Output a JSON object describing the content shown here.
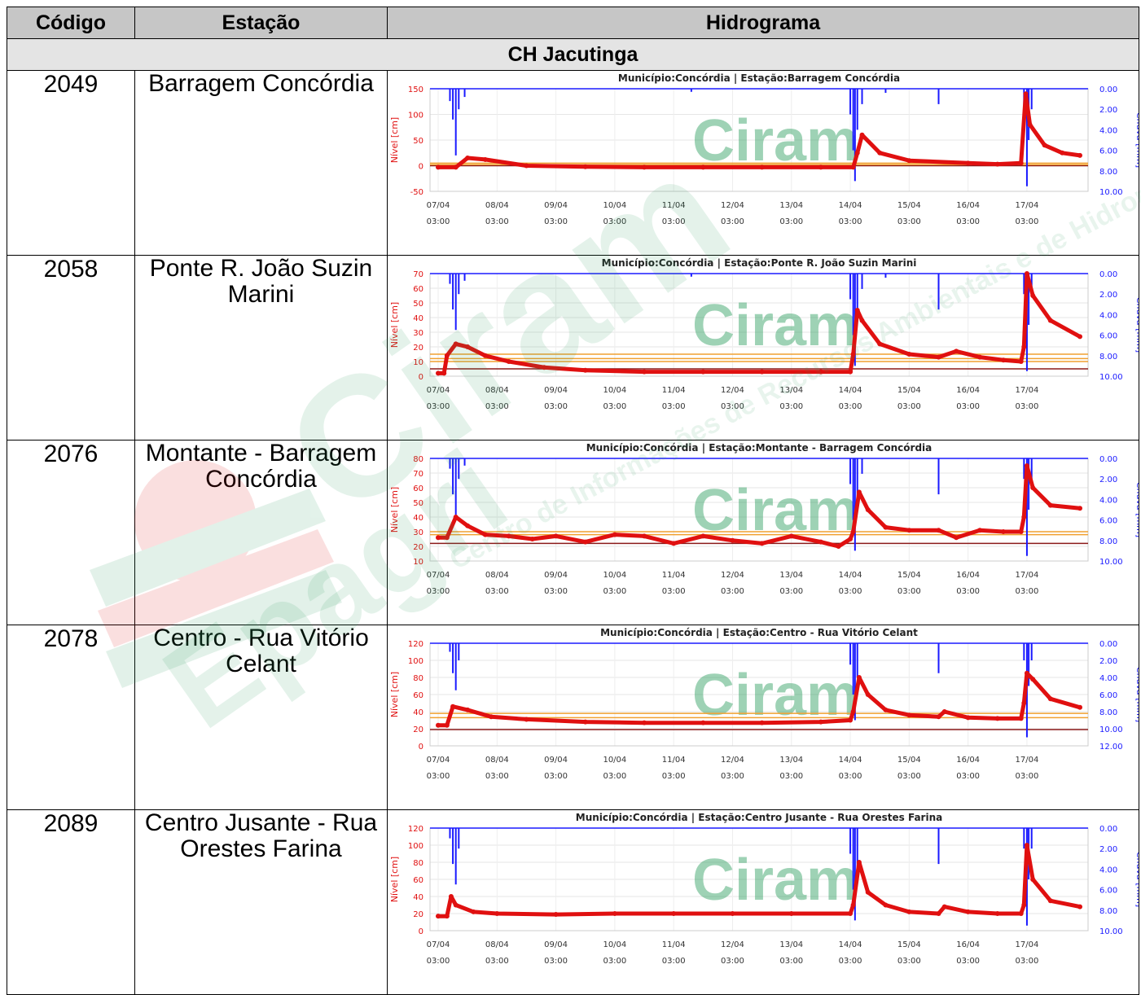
{
  "table": {
    "headers": {
      "code": "Código",
      "station": "Estação",
      "chart": "Hidrograma"
    },
    "group": "CH Jacutinga"
  },
  "watermark": {
    "brand": "Ciram",
    "org": "Epagri",
    "org_line": "Centro de Informações de Recursos Ambientais e de Hidrometeorologia de Santa Catarina"
  },
  "colors": {
    "level": "#e01010",
    "rain": "#1a1aff",
    "threshold_orange": "#f0a030",
    "threshold_dark": "#8b1a1a",
    "watermark_green": "#2a9d5c"
  },
  "x_ticks": [
    {
      "d": "07/04",
      "t": "03:00"
    },
    {
      "d": "08/04",
      "t": "03:00"
    },
    {
      "d": "09/04",
      "t": "03:00"
    },
    {
      "d": "10/04",
      "t": "03:00"
    },
    {
      "d": "11/04",
      "t": "03:00"
    },
    {
      "d": "12/04",
      "t": "03:00"
    },
    {
      "d": "13/04",
      "t": "03:00"
    },
    {
      "d": "14/04",
      "t": "03:00"
    },
    {
      "d": "15/04",
      "t": "03:00"
    },
    {
      "d": "16/04",
      "t": "03:00"
    },
    {
      "d": "17/04",
      "t": "03:00"
    }
  ],
  "rows": [
    {
      "code": "2049",
      "station": "Barragem Concórdia"
    },
    {
      "code": "2058",
      "station": "Ponte R. João Suzin Marini"
    },
    {
      "code": "2076",
      "station": "Montante - Barragem Concórdia"
    },
    {
      "code": "2078",
      "station": "Centro - Rua Vitório Celant"
    },
    {
      "code": "2089",
      "station": "Centro Jusante - Rua Orestes Farina"
    }
  ],
  "chart_data": [
    {
      "type": "line",
      "title": "Município:Concórdia | Estação:Barragem Concórdia",
      "ylabel": "Nível [cm]",
      "y2label": "Chuva [mm]",
      "ylim": [
        -50,
        150
      ],
      "yticks": [
        150,
        100,
        50,
        0,
        -50
      ],
      "y2lim": [
        0,
        10
      ],
      "y2ticks": [
        "0.00",
        "2.00",
        "4.00",
        "6.00",
        "8.00",
        "10.00"
      ],
      "thresholds": [
        {
          "value": 0,
          "color": "#8b1a1a"
        },
        {
          "value": 2,
          "color": "#f0a030"
        },
        {
          "value": 5,
          "color": "#f0a030"
        }
      ],
      "series": [
        {
          "name": "Nível",
          "x": [
            0,
            0.3,
            0.5,
            0.8,
            1.5,
            2.5,
            3.5,
            4.5,
            5.5,
            6.5,
            7.05,
            7.12,
            7.2,
            7.5,
            8,
            9,
            9.5,
            9.9,
            9.98,
            10.05,
            10.3,
            10.6,
            10.9
          ],
          "values": [
            -3,
            -3,
            15,
            12,
            0,
            -2,
            -3,
            -3,
            -3,
            -3,
            -3,
            25,
            60,
            25,
            10,
            5,
            3,
            5,
            140,
            80,
            40,
            25,
            20
          ]
        },
        {
          "name": "Chuva",
          "bars": [
            [
              0.2,
              1.2
            ],
            [
              0.25,
              3.0
            ],
            [
              0.3,
              6.5
            ],
            [
              0.35,
              2.0
            ],
            [
              0.45,
              0.8
            ],
            [
              4.3,
              0.3
            ],
            [
              7.0,
              2.5
            ],
            [
              7.05,
              6.0
            ],
            [
              7.08,
              9.0
            ],
            [
              7.12,
              4.0
            ],
            [
              7.2,
              1.5
            ],
            [
              7.6,
              0.4
            ],
            [
              8.5,
              1.5
            ],
            [
              9.95,
              2.0
            ],
            [
              10.0,
              9.5
            ],
            [
              10.03,
              5.0
            ],
            [
              10.08,
              2.0
            ]
          ]
        }
      ]
    },
    {
      "type": "line",
      "title": "Município:Concórdia | Estação:Ponte R. João Suzin Marini",
      "ylabel": "Nível [cm]",
      "y2label": "Chuva [mm]",
      "ylim": [
        0,
        70
      ],
      "yticks": [
        70,
        60,
        50,
        40,
        30,
        20,
        10,
        0
      ],
      "y2lim": [
        0,
        10
      ],
      "y2ticks": [
        "0.00",
        "2.00",
        "4.00",
        "6.00",
        "8.00",
        "10.00"
      ],
      "thresholds": [
        {
          "value": 5,
          "color": "#8b1a1a"
        },
        {
          "value": 10,
          "color": "#f0a030"
        },
        {
          "value": 12,
          "color": "#f0a030"
        },
        {
          "value": 15,
          "color": "#f0a030"
        }
      ],
      "series": [
        {
          "name": "Nível",
          "x": [
            0,
            0.1,
            0.15,
            0.3,
            0.5,
            0.8,
            1.2,
            1.8,
            2.5,
            3.5,
            4.5,
            5.5,
            6.5,
            7.0,
            7.05,
            7.12,
            7.2,
            7.5,
            8,
            8.5,
            8.8,
            9.2,
            9.6,
            9.9,
            9.95,
            10.0,
            10.1,
            10.4,
            10.9
          ],
          "values": [
            2,
            2,
            14,
            22,
            20,
            14,
            10,
            6,
            4,
            3,
            3,
            3,
            3,
            3,
            15,
            45,
            38,
            22,
            15,
            13,
            17,
            13,
            11,
            10,
            20,
            70,
            55,
            38,
            27
          ]
        },
        {
          "name": "Chuva",
          "bars": [
            [
              0.2,
              1.0
            ],
            [
              0.25,
              3.5
            ],
            [
              0.3,
              5.5
            ],
            [
              0.35,
              2.0
            ],
            [
              0.45,
              0.7
            ],
            [
              4.3,
              0.3
            ],
            [
              7.0,
              2.5
            ],
            [
              7.05,
              6.0
            ],
            [
              7.08,
              9.0
            ],
            [
              7.12,
              4.0
            ],
            [
              7.2,
              1.5
            ],
            [
              7.6,
              0.4
            ],
            [
              8.5,
              3.5
            ],
            [
              9.95,
              2.0
            ],
            [
              10.0,
              9.5
            ],
            [
              10.03,
              5.0
            ],
            [
              10.08,
              2.0
            ]
          ]
        }
      ]
    },
    {
      "type": "line",
      "title": "Município:Concórdia | Estação:Montante - Barragem Concórdia",
      "ylabel": "Nível [cm]",
      "y2label": "Chuva [mm]",
      "ylim": [
        10,
        80
      ],
      "yticks": [
        80,
        70,
        60,
        50,
        40,
        30,
        20,
        10
      ],
      "y2lim": [
        0,
        10
      ],
      "y2ticks": [
        "0.00",
        "2.00",
        "4.00",
        "6.00",
        "8.00",
        "10.00"
      ],
      "thresholds": [
        {
          "value": 22,
          "color": "#8b1a1a"
        },
        {
          "value": 28,
          "color": "#f0a030"
        },
        {
          "value": 30,
          "color": "#f0a030"
        }
      ],
      "series": [
        {
          "name": "Nível",
          "x": [
            0,
            0.15,
            0.3,
            0.5,
            0.8,
            1.2,
            1.6,
            2.0,
            2.5,
            3.0,
            3.5,
            4.0,
            4.5,
            5.0,
            5.5,
            6.0,
            6.5,
            6.8,
            7.0,
            7.05,
            7.15,
            7.3,
            7.6,
            8,
            8.5,
            8.8,
            9.2,
            9.6,
            9.9,
            9.95,
            10.0,
            10.1,
            10.4,
            10.9
          ],
          "values": [
            26,
            26,
            40,
            34,
            28,
            27,
            25,
            27,
            23,
            28,
            27,
            22,
            27,
            24,
            22,
            27,
            23,
            20,
            25,
            30,
            57,
            45,
            33,
            31,
            31,
            26,
            31,
            30,
            30,
            40,
            75,
            60,
            48,
            46
          ]
        },
        {
          "name": "Chuva",
          "bars": [
            [
              0.2,
              1.0
            ],
            [
              0.25,
              3.5
            ],
            [
              0.3,
              5.5
            ],
            [
              0.35,
              2.0
            ],
            [
              0.45,
              0.7
            ],
            [
              7.0,
              2.5
            ],
            [
              7.05,
              6.0
            ],
            [
              7.08,
              9.0
            ],
            [
              7.12,
              4.0
            ],
            [
              7.2,
              1.5
            ],
            [
              8.5,
              3.5
            ],
            [
              9.95,
              2.0
            ],
            [
              10.0,
              9.5
            ],
            [
              10.03,
              5.0
            ],
            [
              10.08,
              2.0
            ]
          ]
        }
      ]
    },
    {
      "type": "line",
      "title": "Município:Concórdia | Estação:Centro - Rua Vitório Celant",
      "ylabel": "Nível [cm]",
      "y2label": "Chuva [mm]",
      "ylim": [
        0,
        120
      ],
      "yticks": [
        120,
        100,
        80,
        60,
        40,
        20,
        0
      ],
      "y2lim": [
        0,
        12
      ],
      "y2ticks": [
        "0.00",
        "2.00",
        "4.00",
        "6.00",
        "8.00",
        "10.00",
        "12.00"
      ],
      "thresholds": [
        {
          "value": 19,
          "color": "#8b1a1a"
        },
        {
          "value": 33,
          "color": "#f0a030"
        },
        {
          "value": 38,
          "color": "#f0a030"
        }
      ],
      "series": [
        {
          "name": "Nível",
          "x": [
            0,
            0.15,
            0.25,
            0.5,
            0.9,
            1.5,
            2.5,
            3.5,
            4.5,
            5.5,
            6.5,
            7.0,
            7.05,
            7.15,
            7.3,
            7.6,
            8,
            8.5,
            8.6,
            9.0,
            9.5,
            9.9,
            9.95,
            10.0,
            10.1,
            10.4,
            10.9
          ],
          "values": [
            24,
            24,
            46,
            42,
            34,
            31,
            28,
            27,
            27,
            27,
            28,
            30,
            40,
            80,
            60,
            42,
            36,
            34,
            40,
            33,
            32,
            32,
            50,
            85,
            78,
            55,
            45
          ]
        },
        {
          "name": "Chuva",
          "bars": [
            [
              0.2,
              1.0
            ],
            [
              0.25,
              3.5
            ],
            [
              0.3,
              5.5
            ],
            [
              0.35,
              2.0
            ],
            [
              7.0,
              2.5
            ],
            [
              7.05,
              6.0
            ],
            [
              7.08,
              9.0
            ],
            [
              7.12,
              4.0
            ],
            [
              8.5,
              3.5
            ],
            [
              9.95,
              2.0
            ],
            [
              10.0,
              11.0
            ],
            [
              10.03,
              5.0
            ],
            [
              10.08,
              2.0
            ]
          ]
        }
      ]
    },
    {
      "type": "line",
      "title": "Município:Concórdia | Estação:Centro Jusante - Rua Orestes Farina",
      "ylabel": "Nível [cm]",
      "y2label": "Chuva [mm]",
      "ylim": [
        0,
        120
      ],
      "yticks": [
        120,
        100,
        80,
        60,
        40,
        20,
        0
      ],
      "y2lim": [
        0,
        10
      ],
      "y2ticks": [
        "0.00",
        "2.00",
        "4.00",
        "6.00",
        "8.00",
        "10.00"
      ],
      "thresholds": [],
      "series": [
        {
          "name": "Nível",
          "x": [
            0,
            0.15,
            0.22,
            0.3,
            0.6,
            1.0,
            2.0,
            3.0,
            4.0,
            5.0,
            6.0,
            7.0,
            7.05,
            7.15,
            7.3,
            7.6,
            8,
            8.5,
            8.6,
            9.0,
            9.5,
            9.9,
            9.95,
            10.0,
            10.1,
            10.4,
            10.9
          ],
          "values": [
            17,
            17,
            40,
            30,
            22,
            20,
            19,
            20,
            20,
            20,
            20,
            20,
            30,
            80,
            45,
            30,
            22,
            20,
            28,
            22,
            20,
            20,
            30,
            100,
            60,
            35,
            28
          ]
        },
        {
          "name": "Chuva",
          "bars": [
            [
              0.2,
              1.0
            ],
            [
              0.25,
              3.5
            ],
            [
              0.3,
              5.5
            ],
            [
              0.35,
              2.0
            ],
            [
              7.0,
              2.5
            ],
            [
              7.05,
              6.0
            ],
            [
              7.08,
              9.0
            ],
            [
              7.12,
              4.0
            ],
            [
              8.5,
              3.5
            ],
            [
              9.95,
              2.0
            ],
            [
              10.0,
              9.5
            ],
            [
              10.03,
              5.0
            ],
            [
              10.08,
              2.0
            ]
          ]
        }
      ]
    }
  ]
}
